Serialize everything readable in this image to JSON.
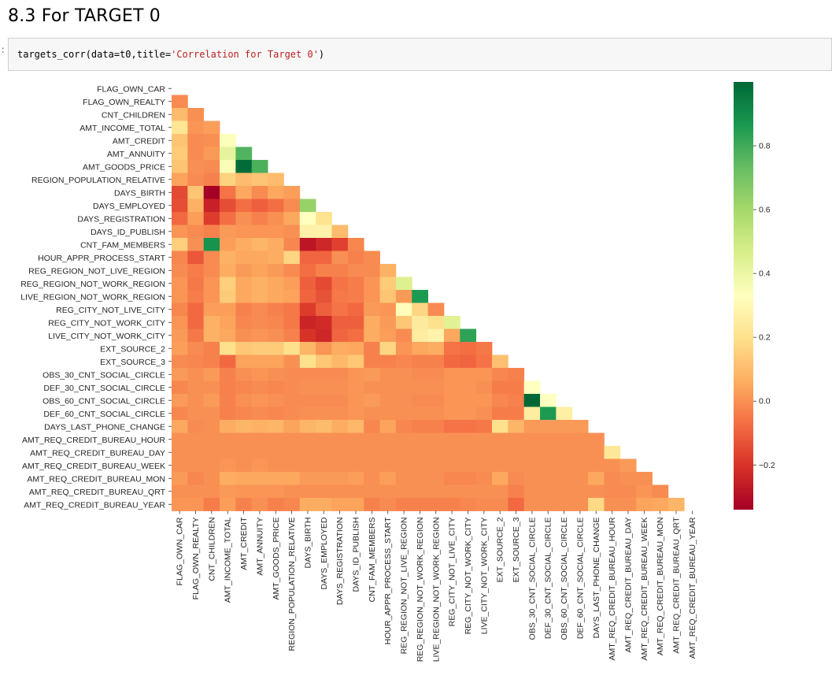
{
  "cell": {
    "heading": "8.3 For TARGET 0",
    "prompt_marker": ":",
    "code_prefix": "targets_corr(data=t0,title=",
    "code_string": "'Correlation for Target 0'",
    "code_suffix": ")"
  },
  "colormap": {
    "name": "RdYlGn",
    "stops": [
      "#a50026",
      "#d73027",
      "#f46d43",
      "#fdae61",
      "#fee08b",
      "#ffffbf",
      "#d9ef8b",
      "#a6d96a",
      "#66bd63",
      "#1a9850",
      "#006837"
    ],
    "min": -0.34,
    "max": 1.0
  },
  "chart_data": {
    "type": "heatmap",
    "title": "",
    "mask": "upper-triangle",
    "labels": [
      "FLAG_OWN_CAR",
      "FLAG_OWN_REALTY",
      "CNT_CHILDREN",
      "AMT_INCOME_TOTAL",
      "AMT_CREDIT",
      "AMT_ANNUITY",
      "AMT_GOODS_PRICE",
      "REGION_POPULATION_RELATIVE",
      "DAYS_BIRTH",
      "DAYS_EMPLOYED",
      "DAYS_REGISTRATION",
      "DAYS_ID_PUBLISH",
      "CNT_FAM_MEMBERS",
      "HOUR_APPR_PROCESS_START",
      "REG_REGION_NOT_LIVE_REGION",
      "REG_REGION_NOT_WORK_REGION",
      "LIVE_REGION_NOT_WORK_REGION",
      "REG_CITY_NOT_LIVE_CITY",
      "REG_CITY_NOT_WORK_CITY",
      "LIVE_CITY_NOT_WORK_CITY",
      "EXT_SOURCE_2",
      "EXT_SOURCE_3",
      "OBS_30_CNT_SOCIAL_CIRCLE",
      "DEF_30_CNT_SOCIAL_CIRCLE",
      "OBS_60_CNT_SOCIAL_CIRCLE",
      "DEF_60_CNT_SOCIAL_CIRCLE",
      "DAYS_LAST_PHONE_CHANGE",
      "AMT_REQ_CREDIT_BUREAU_HOUR",
      "AMT_REQ_CREDIT_BUREAU_DAY",
      "AMT_REQ_CREDIT_BUREAU_WEEK",
      "AMT_REQ_CREDIT_BUREAU_MON",
      "AMT_REQ_CREDIT_BUREAU_QRT",
      "AMT_REQ_CREDIT_BUREAU_YEAR"
    ],
    "rows": [
      [],
      [
        -0.01
      ],
      [
        0.1,
        0.0
      ],
      [
        0.22,
        0.01,
        0.03
      ],
      [
        0.12,
        -0.01,
        0.0,
        0.34
      ],
      [
        0.14,
        -0.01,
        0.02,
        0.42,
        0.77
      ],
      [
        0.12,
        0.0,
        -0.01,
        0.35,
        0.99,
        0.78
      ],
      [
        0.04,
        -0.01,
        -0.03,
        0.16,
        0.1,
        0.12,
        0.1
      ],
      [
        -0.15,
        0.12,
        -0.34,
        -0.06,
        0.05,
        -0.01,
        0.05,
        0.03
      ],
      [
        -0.14,
        0.07,
        -0.25,
        -0.14,
        -0.07,
        -0.1,
        -0.07,
        -0.01,
        0.63
      ],
      [
        -0.08,
        0.03,
        -0.18,
        -0.07,
        0.0,
        -0.03,
        0.0,
        0.05,
        0.33,
        0.21
      ],
      [
        0.01,
        -0.01,
        -0.03,
        0.02,
        0.01,
        0.01,
        0.01,
        0.0,
        0.27,
        0.28,
        0.1
      ],
      [
        0.15,
        0.0,
        0.88,
        0.03,
        0.06,
        0.08,
        0.06,
        -0.02,
        -0.28,
        -0.23,
        -0.17,
        -0.02
      ],
      [
        -0.02,
        -0.12,
        -0.01,
        0.07,
        0.05,
        0.05,
        0.06,
        0.17,
        -0.09,
        -0.09,
        0.0,
        -0.03,
        -0.01
      ],
      [
        -0.01,
        -0.04,
        -0.01,
        0.06,
        0.02,
        0.04,
        0.02,
        -0.01,
        -0.07,
        -0.03,
        -0.03,
        -0.01,
        -0.01,
        0.07
      ],
      [
        0.01,
        -0.05,
        0.01,
        0.15,
        0.05,
        0.07,
        0.05,
        0.03,
        -0.1,
        -0.15,
        -0.06,
        -0.04,
        0.01,
        0.14,
        0.45
      ],
      [
        0.01,
        -0.04,
        0.01,
        0.14,
        0.05,
        0.07,
        0.05,
        0.04,
        -0.09,
        -0.13,
        -0.05,
        -0.04,
        0.01,
        0.12,
        0.02,
        0.86
      ],
      [
        -0.02,
        -0.08,
        0.03,
        0.03,
        -0.03,
        -0.01,
        -0.03,
        -0.05,
        -0.18,
        -0.1,
        -0.06,
        -0.08,
        0.02,
        0.01,
        0.32,
        0.17,
        -0.01
      ],
      [
        0.01,
        -0.08,
        0.07,
        0.04,
        -0.02,
        -0.01,
        -0.02,
        -0.05,
        -0.24,
        -0.22,
        -0.1,
        -0.1,
        0.06,
        0.02,
        0.13,
        0.24,
        0.2,
        0.44
      ],
      [
        0.02,
        -0.05,
        0.07,
        0.05,
        0.0,
        0.01,
        0.0,
        -0.03,
        -0.2,
        -0.23,
        -0.09,
        -0.07,
        0.06,
        0.03,
        -0.01,
        0.25,
        0.28,
        0.05,
        0.83
      ],
      [
        0.03,
        -0.01,
        -0.03,
        0.2,
        0.13,
        0.14,
        0.14,
        0.2,
        0.08,
        0.01,
        0.06,
        0.05,
        -0.03,
        0.17,
        0.01,
        0.05,
        0.06,
        -0.06,
        -0.07,
        -0.05
      ],
      [
        -0.01,
        -0.02,
        -0.03,
        -0.08,
        0.04,
        0.04,
        0.04,
        0.0,
        0.2,
        0.13,
        0.09,
        0.13,
        -0.03,
        -0.03,
        -0.02,
        -0.03,
        -0.03,
        -0.08,
        -0.09,
        -0.06,
        0.11
      ],
      [
        0.02,
        0.0,
        0.02,
        -0.03,
        0.0,
        0.01,
        0.0,
        -0.01,
        -0.01,
        -0.01,
        -0.01,
        0.01,
        0.02,
        0.0,
        0.0,
        -0.01,
        -0.01,
        0.01,
        0.01,
        0.01,
        -0.02,
        -0.03
      ],
      [
        -0.02,
        0.0,
        0.0,
        -0.03,
        -0.02,
        -0.01,
        -0.02,
        -0.01,
        0.0,
        0.0,
        0.0,
        0.01,
        0.0,
        0.0,
        0.0,
        0.0,
        0.0,
        0.01,
        0.01,
        0.0,
        -0.04,
        -0.04,
        0.33
      ],
      [
        0.02,
        0.0,
        0.02,
        -0.03,
        0.0,
        0.01,
        0.0,
        -0.01,
        -0.01,
        -0.01,
        -0.01,
        0.01,
        0.02,
        0.0,
        0.0,
        -0.01,
        -0.01,
        0.01,
        0.01,
        0.01,
        -0.02,
        -0.03,
        1.0,
        0.33
      ],
      [
        -0.02,
        0.0,
        0.0,
        -0.03,
        -0.02,
        -0.01,
        -0.02,
        -0.01,
        0.0,
        0.0,
        0.0,
        0.01,
        0.0,
        0.0,
        0.0,
        0.0,
        0.0,
        0.01,
        0.01,
        0.0,
        -0.04,
        -0.04,
        0.25,
        0.86,
        0.26
      ],
      [
        0.05,
        -0.01,
        0.0,
        0.06,
        0.08,
        0.07,
        0.08,
        0.04,
        0.08,
        0.1,
        0.06,
        0.09,
        -0.02,
        0.04,
        -0.02,
        -0.03,
        -0.03,
        -0.06,
        -0.06,
        -0.05,
        0.2,
        0.08,
        0.02,
        0.02,
        0.02,
        0.02
      ],
      [
        0.0,
        0.0,
        0.0,
        0.0,
        0.0,
        0.0,
        0.0,
        0.0,
        0.0,
        0.0,
        0.0,
        0.0,
        0.0,
        0.0,
        0.0,
        0.0,
        0.0,
        0.0,
        0.0,
        0.0,
        0.0,
        0.0,
        0.0,
        0.0,
        0.0,
        0.0,
        0.0
      ],
      [
        0.0,
        0.0,
        0.0,
        0.0,
        0.0,
        0.0,
        0.0,
        0.0,
        0.0,
        0.0,
        0.0,
        0.0,
        0.0,
        0.0,
        0.0,
        0.0,
        0.0,
        0.0,
        0.0,
        0.0,
        0.0,
        0.0,
        0.0,
        0.0,
        0.0,
        0.0,
        0.0,
        0.23
      ],
      [
        0.0,
        0.0,
        0.0,
        0.01,
        0.0,
        0.01,
        0.0,
        0.0,
        0.0,
        0.0,
        0.0,
        0.0,
        0.0,
        0.0,
        0.0,
        0.0,
        0.0,
        0.0,
        0.0,
        0.0,
        0.0,
        0.0,
        0.0,
        0.0,
        0.0,
        0.0,
        0.0,
        0.0,
        0.02
      ],
      [
        0.02,
        -0.02,
        0.0,
        0.06,
        0.05,
        0.05,
        0.05,
        0.05,
        0.02,
        0.02,
        0.02,
        0.03,
        0.0,
        0.03,
        0.0,
        0.0,
        0.0,
        -0.02,
        -0.02,
        -0.01,
        0.05,
        -0.01,
        0.0,
        0.0,
        0.0,
        0.0,
        0.05,
        -0.01,
        0.0,
        0.0
      ],
      [
        0.0,
        0.0,
        0.0,
        0.02,
        0.01,
        0.01,
        0.01,
        0.0,
        0.0,
        0.0,
        0.0,
        0.0,
        0.0,
        0.0,
        0.0,
        0.0,
        0.0,
        0.0,
        0.0,
        0.0,
        0.0,
        -0.03,
        0.0,
        0.0,
        0.0,
        0.0,
        0.0,
        -0.01,
        -0.01,
        0.01,
        -0.01
      ],
      [
        0.01,
        0.01,
        -0.04,
        0.03,
        -0.03,
        0.0,
        -0.03,
        -0.02,
        0.06,
        0.06,
        0.04,
        0.04,
        -0.03,
        -0.01,
        -0.03,
        -0.03,
        -0.03,
        -0.03,
        -0.02,
        -0.01,
        -0.01,
        -0.08,
        0.0,
        0.0,
        0.0,
        0.0,
        0.18,
        0.0,
        0.0,
        0.04,
        0.05,
        0.08
      ]
    ],
    "colorbar_ticks": [
      0.8,
      0.6,
      0.4,
      0.2,
      0.0,
      -0.2
    ],
    "colorbar_tick_labels": [
      "0.8",
      "0.6",
      "0.4",
      "0.2",
      "0.0",
      "−0.2"
    ]
  }
}
